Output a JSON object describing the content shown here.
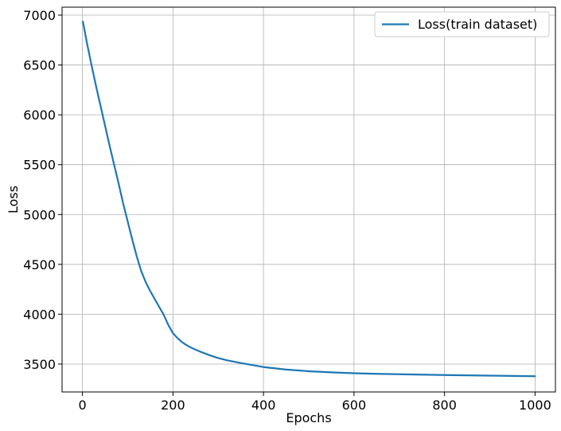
{
  "chart_data": {
    "type": "line",
    "title": "",
    "xlabel": "Epochs",
    "ylabel": "Loss",
    "xlim": [
      -45,
      1045
    ],
    "ylim": [
      3220,
      7080
    ],
    "xticks": [
      0,
      200,
      400,
      600,
      800,
      1000
    ],
    "xtick_labels": [
      "0",
      "200",
      "400",
      "600",
      "800",
      "1000"
    ],
    "yticks": [
      3500,
      4000,
      4500,
      5000,
      5500,
      6000,
      6500,
      7000
    ],
    "ytick_labels": [
      "3500",
      "4000",
      "4500",
      "5000",
      "5500",
      "6000",
      "6500",
      "7000"
    ],
    "grid": true,
    "legend_position": "top-right",
    "series": [
      {
        "name": "Loss(train dataset)",
        "color": "#1f77b4",
        "x": [
          1,
          10,
          20,
          30,
          40,
          50,
          60,
          70,
          80,
          90,
          100,
          110,
          120,
          130,
          140,
          150,
          160,
          170,
          180,
          190,
          200,
          210,
          220,
          230,
          240,
          250,
          260,
          280,
          300,
          320,
          350,
          400,
          450,
          500,
          550,
          600,
          650,
          700,
          750,
          800,
          850,
          900,
          950,
          1000
        ],
        "values": [
          6935,
          6720,
          6500,
          6290,
          6090,
          5890,
          5690,
          5500,
          5310,
          5110,
          4930,
          4750,
          4580,
          4430,
          4320,
          4230,
          4150,
          4070,
          3990,
          3890,
          3810,
          3760,
          3720,
          3690,
          3665,
          3645,
          3625,
          3590,
          3560,
          3537,
          3510,
          3470,
          3445,
          3428,
          3417,
          3408,
          3402,
          3398,
          3394,
          3390,
          3387,
          3384,
          3381,
          3378
        ]
      }
    ]
  }
}
